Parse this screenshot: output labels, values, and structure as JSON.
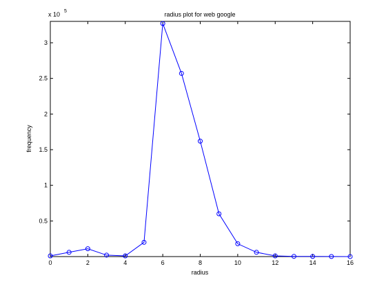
{
  "chart_data": {
    "type": "line",
    "title": "radius plot for web google",
    "xlabel": "radius",
    "ylabel": "frequency",
    "y_multiplier_label": "x 10",
    "y_multiplier_exponent": "5",
    "xlim": [
      0,
      16
    ],
    "ylim": [
      0,
      3.3
    ],
    "x_ticks": [
      0,
      2,
      4,
      6,
      8,
      10,
      12,
      14,
      16
    ],
    "x_tick_labels": [
      "0",
      "2",
      "4",
      "6",
      "8",
      "10",
      "12",
      "14",
      "16"
    ],
    "y_ticks": [
      0.5,
      1,
      1.5,
      2,
      2.5,
      3
    ],
    "y_tick_labels": [
      "0.5",
      "1",
      "1.5",
      "2",
      "2.5",
      "3"
    ],
    "grid": false,
    "legend": "none",
    "marker": "circle",
    "line_color": "#0000ff",
    "series": [
      {
        "x": [
          0,
          1,
          2,
          3,
          4,
          5,
          6,
          7,
          8,
          9,
          10,
          11,
          12,
          13,
          14,
          15,
          16
        ],
        "values": [
          0.01,
          0.06,
          0.11,
          0.02,
          0.01,
          0.2,
          3.27,
          2.57,
          1.62,
          0.6,
          0.18,
          0.06,
          0.01,
          0.003,
          0.002,
          0.001,
          0.0005
        ]
      }
    ]
  }
}
